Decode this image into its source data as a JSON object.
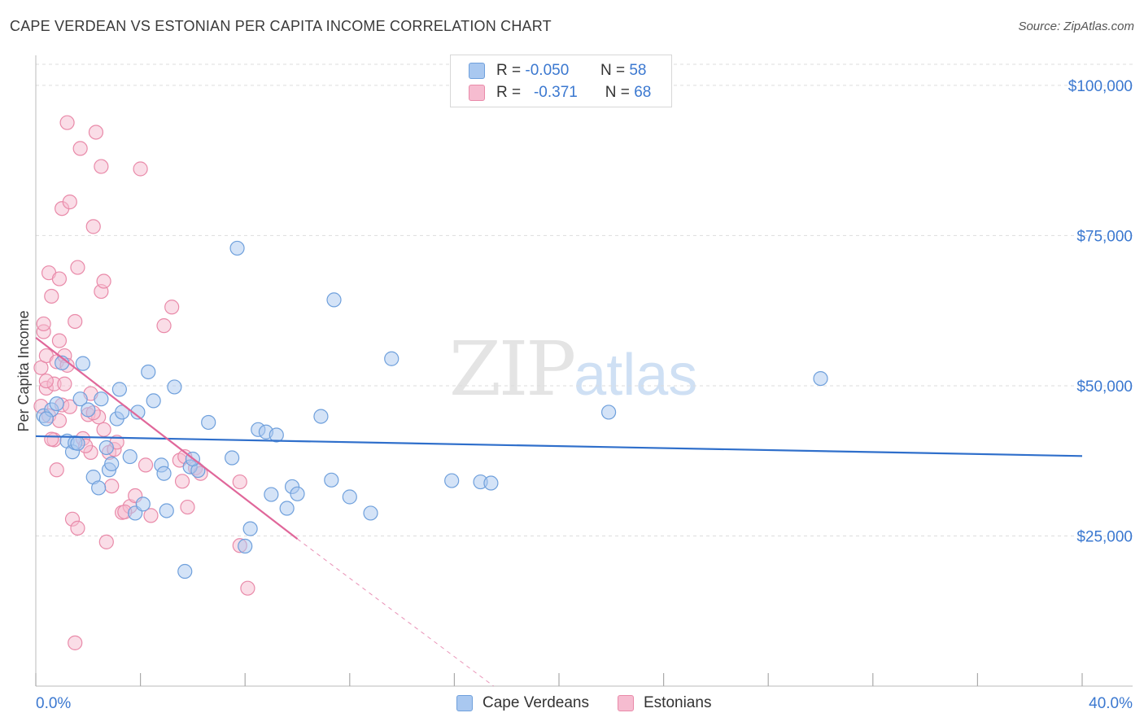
{
  "header": {
    "title": "CAPE VERDEAN VS ESTONIAN PER CAPITA INCOME CORRELATION CHART",
    "source": "Source: ZipAtlas.com"
  },
  "watermark": {
    "zip": "ZIP",
    "atlas": "atlas"
  },
  "legend": {
    "rows": [
      {
        "r_label": "R =",
        "r_value": "-0.050",
        "n_label": "N =",
        "n_value": "58"
      },
      {
        "r_label": "R =",
        "r_value": "-0.371",
        "n_label": "N =",
        "n_value": "68"
      }
    ]
  },
  "bottom_legend": [
    {
      "label": "Cape Verdeans"
    },
    {
      "label": "Estonians"
    }
  ],
  "colors": {
    "blue_fill": "#a9c8f0",
    "blue_stroke": "#6fa0dc",
    "blue_line": "#2f6fcb",
    "pink_fill": "#f6bcd0",
    "pink_stroke": "#e98aa9",
    "pink_line": "#e0679a",
    "tick_text": "#3b78d0",
    "grid": "#dddddd"
  },
  "chart_data": {
    "type": "scatter",
    "title": "CAPE VERDEAN VS ESTONIAN PER CAPITA INCOME CORRELATION CHART",
    "xlabel": "",
    "ylabel": "Per Capita Income",
    "xlim": [
      0,
      40
    ],
    "ylim": [
      0,
      105000
    ],
    "x_tick_labels": [
      "0.0%",
      "40.0%"
    ],
    "y_ticks": [
      25000,
      50000,
      75000,
      100000
    ],
    "y_tick_labels": [
      "$25,000",
      "$50,000",
      "$75,000",
      "$100,000"
    ],
    "grid": true,
    "legend_position": "top-center",
    "series": [
      {
        "name": "Cape Verdeans",
        "color": "#a9c8f0",
        "r": -0.05,
        "n": 58,
        "trend": {
          "x": [
            0,
            40
          ],
          "y": [
            41600,
            38300
          ]
        },
        "points": [
          [
            0.3,
            45000
          ],
          [
            0.6,
            46000
          ],
          [
            0.8,
            47000
          ],
          [
            1.0,
            53800
          ],
          [
            1.2,
            40800
          ],
          [
            1.4,
            39000
          ],
          [
            1.5,
            40500
          ],
          [
            1.7,
            47800
          ],
          [
            1.8,
            53700
          ],
          [
            2.0,
            46000
          ],
          [
            2.2,
            34800
          ],
          [
            2.4,
            33000
          ],
          [
            2.5,
            47800
          ],
          [
            2.7,
            39700
          ],
          [
            2.8,
            36000
          ],
          [
            3.1,
            44500
          ],
          [
            3.2,
            49400
          ],
          [
            3.3,
            45600
          ],
          [
            3.6,
            38200
          ],
          [
            3.9,
            45600
          ],
          [
            3.8,
            28800
          ],
          [
            4.1,
            30300
          ],
          [
            4.3,
            52300
          ],
          [
            4.5,
            47500
          ],
          [
            4.8,
            36800
          ],
          [
            4.9,
            35400
          ],
          [
            5.0,
            29200
          ],
          [
            5.3,
            49800
          ],
          [
            5.7,
            19100
          ],
          [
            5.9,
            36500
          ],
          [
            6.2,
            35900
          ],
          [
            6.6,
            43900
          ],
          [
            7.5,
            38000
          ],
          [
            7.7,
            72900
          ],
          [
            8.0,
            23300
          ],
          [
            8.2,
            26200
          ],
          [
            8.5,
            42700
          ],
          [
            8.8,
            42300
          ],
          [
            9.0,
            31900
          ],
          [
            9.2,
            41800
          ],
          [
            9.6,
            29600
          ],
          [
            9.8,
            33200
          ],
          [
            10.9,
            44900
          ],
          [
            11.3,
            34300
          ],
          [
            11.4,
            64300
          ],
          [
            12.0,
            31500
          ],
          [
            12.8,
            28800
          ],
          [
            13.6,
            54500
          ],
          [
            15.9,
            34200
          ],
          [
            17.0,
            34000
          ],
          [
            17.4,
            33800
          ],
          [
            21.9,
            45600
          ],
          [
            30.0,
            51200
          ],
          [
            0.4,
            44500
          ],
          [
            1.6,
            40400
          ],
          [
            2.9,
            37000
          ],
          [
            6.0,
            37800
          ],
          [
            10.0,
            32000
          ]
        ]
      },
      {
        "name": "Estonians",
        "color": "#f6bcd0",
        "r": -0.371,
        "n": 68,
        "trend": {
          "x": [
            0,
            10
          ],
          "y": [
            58000,
            24500
          ]
        },
        "trend_dashed": {
          "x": [
            10,
            17.5
          ],
          "y": [
            24500,
            0
          ]
        },
        "points": [
          [
            0.2,
            53000
          ],
          [
            0.3,
            59000
          ],
          [
            0.3,
            60300
          ],
          [
            0.4,
            55000
          ],
          [
            0.4,
            49600
          ],
          [
            0.5,
            45000
          ],
          [
            0.5,
            68800
          ],
          [
            0.6,
            64900
          ],
          [
            0.7,
            50300
          ],
          [
            0.7,
            41000
          ],
          [
            0.8,
            54000
          ],
          [
            0.8,
            36000
          ],
          [
            0.9,
            67800
          ],
          [
            0.9,
            57500
          ],
          [
            1.0,
            46800
          ],
          [
            1.0,
            79500
          ],
          [
            1.1,
            50300
          ],
          [
            1.1,
            55000
          ],
          [
            1.2,
            53400
          ],
          [
            1.2,
            93800
          ],
          [
            1.3,
            80600
          ],
          [
            1.4,
            27800
          ],
          [
            1.5,
            60700
          ],
          [
            1.5,
            7200
          ],
          [
            1.6,
            26300
          ],
          [
            1.6,
            69700
          ],
          [
            1.7,
            89500
          ],
          [
            1.8,
            41200
          ],
          [
            2.0,
            45200
          ],
          [
            2.1,
            48700
          ],
          [
            2.1,
            38900
          ],
          [
            2.2,
            76500
          ],
          [
            2.3,
            92200
          ],
          [
            2.4,
            44800
          ],
          [
            2.5,
            65700
          ],
          [
            2.5,
            86500
          ],
          [
            2.6,
            67400
          ],
          [
            2.6,
            42700
          ],
          [
            2.7,
            24000
          ],
          [
            2.8,
            38900
          ],
          [
            3.0,
            39400
          ],
          [
            3.1,
            40600
          ],
          [
            3.3,
            28900
          ],
          [
            3.6,
            29900
          ],
          [
            3.8,
            31700
          ],
          [
            4.0,
            86100
          ],
          [
            4.2,
            36800
          ],
          [
            4.4,
            28400
          ],
          [
            4.9,
            60000
          ],
          [
            5.2,
            63100
          ],
          [
            5.5,
            37600
          ],
          [
            5.6,
            34100
          ],
          [
            5.8,
            29800
          ],
          [
            6.1,
            36300
          ],
          [
            7.8,
            23400
          ],
          [
            8.1,
            16300
          ],
          [
            0.2,
            46600
          ],
          [
            0.4,
            50800
          ],
          [
            1.9,
            40000
          ],
          [
            2.2,
            45500
          ],
          [
            2.9,
            33300
          ],
          [
            3.4,
            29000
          ],
          [
            5.7,
            38200
          ],
          [
            6.3,
            35400
          ],
          [
            7.8,
            34000
          ],
          [
            0.9,
            44200
          ],
          [
            1.3,
            46500
          ],
          [
            0.6,
            41100
          ]
        ]
      }
    ]
  }
}
